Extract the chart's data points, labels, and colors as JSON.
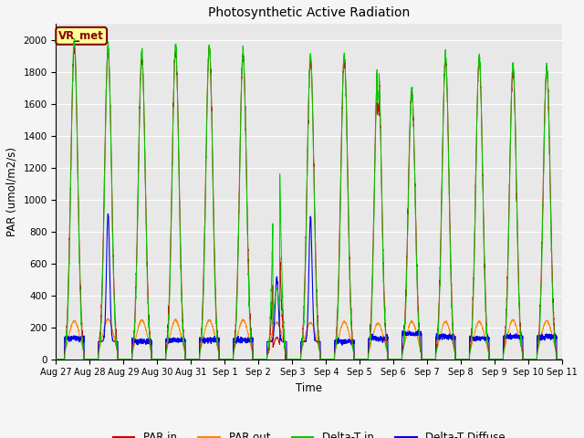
{
  "title": "Photosynthetic Active Radiation",
  "xlabel": "Time",
  "ylabel": "PAR (umol/m2/s)",
  "ylim": [
    0,
    2100
  ],
  "yticks": [
    0,
    200,
    400,
    600,
    800,
    1000,
    1200,
    1400,
    1600,
    1800,
    2000
  ],
  "x_tick_labels": [
    "Aug 27",
    "Aug 28",
    "Aug 29",
    "Aug 30",
    "Aug 31",
    "Sep 1",
    "Sep 2",
    "Sep 3",
    "Sep 4",
    "Sep 5",
    "Sep 6",
    "Sep 7",
    "Sep 8",
    "Sep 9",
    "Sep 10",
    "Sep 11"
  ],
  "colors": {
    "par_in": "#cc0000",
    "par_out": "#ff8800",
    "delta_t_in": "#00cc00",
    "delta_t_diffuse": "#0000ee"
  },
  "legend_labels": [
    "PAR in",
    "PAR out",
    "Delta-T in",
    "Delta-T Diffuse"
  ],
  "annotation_text": "VR_met",
  "annotation_color": "#880000",
  "annotation_bg": "#ffff99",
  "bg_color": "#e8e8e8",
  "grid_color": "#ffffff",
  "figsize": [
    6.4,
    4.8
  ],
  "dpi": 100
}
